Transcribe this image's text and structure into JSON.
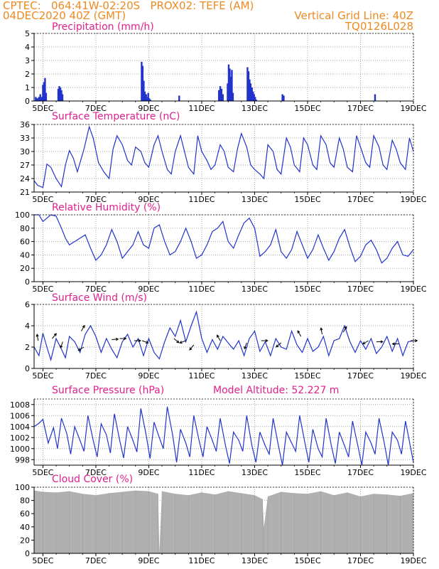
{
  "header": {
    "line1_left": "CPTEC:   064:41W-02:20S   PROX02: TEFE (AM)",
    "line2_left": "04DEC2020 40Z (GMT)",
    "line2_right": "Vertical Grid Line: 40Z",
    "line3_right": "TQ0126L028"
  },
  "colors": {
    "header": "#ee8a22",
    "title": "#e0208e",
    "line": "#2233cc",
    "bar": "#2233cc",
    "cloud": "#b0b0b0",
    "grid": "#888888"
  },
  "x_axis": {
    "start_day": 4,
    "start_hour": 16,
    "end_day": 19,
    "tick_labels": [
      "5DEC",
      "7DEC",
      "9DEC",
      "11DEC",
      "13DEC",
      "15DEC",
      "17DEC",
      "19DEC"
    ]
  },
  "chart_data": [
    {
      "id": "precip",
      "type": "bar",
      "title": "Precipitation (mm/h)",
      "ylim": [
        0,
        5
      ],
      "yticks": [
        0,
        1,
        2,
        3,
        4,
        5
      ],
      "x_days": [
        4.73,
        4.79,
        4.85,
        4.9,
        4.96,
        5.0,
        5.04,
        5.08,
        5.12,
        5.58,
        5.62,
        5.66,
        5.7,
        5.74,
        8.73,
        8.77,
        8.81,
        8.85,
        8.9,
        8.94,
        8.98,
        9.02,
        9.06,
        10.15,
        11.65,
        11.7,
        11.75,
        11.8,
        11.98,
        12.02,
        12.06,
        12.1,
        12.14,
        12.18,
        12.73,
        12.77,
        12.81,
        12.85,
        12.9,
        12.94,
        12.98,
        13.02,
        13.06,
        14.05,
        14.1,
        17.55
      ],
      "values": [
        0.3,
        0.2,
        0.3,
        0.5,
        0.3,
        1.2,
        1.4,
        1.7,
        0.6,
        0.9,
        1.1,
        1.0,
        0.8,
        0.5,
        2.9,
        2.6,
        1.5,
        0.7,
        0.5,
        0.3,
        0.6,
        0.2,
        0.1,
        0.4,
        0.8,
        1.1,
        0.9,
        0.5,
        1.3,
        2.7,
        2.4,
        1.8,
        2.3,
        0.6,
        2.5,
        2.2,
        1.6,
        1.3,
        1.0,
        0.7,
        0.5,
        0.3,
        0.1,
        0.5,
        0.4,
        0.5
      ]
    },
    {
      "id": "temp",
      "type": "line",
      "title": "Surface Temperature (nC)",
      "ylim": [
        21,
        36
      ],
      "yticks": [
        21,
        24,
        27,
        30,
        33,
        36
      ],
      "x_days": [
        4.67,
        4.8,
        5.0,
        5.15,
        5.3,
        5.5,
        5.7,
        5.85,
        6.0,
        6.15,
        6.3,
        6.55,
        6.75,
        6.9,
        7.1,
        7.3,
        7.5,
        7.65,
        7.8,
        8.0,
        8.2,
        8.35,
        8.5,
        8.7,
        8.85,
        9.0,
        9.2,
        9.35,
        9.5,
        9.7,
        9.85,
        10.0,
        10.2,
        10.35,
        10.5,
        10.7,
        10.85,
        11.0,
        11.2,
        11.35,
        11.5,
        11.7,
        11.85,
        12.0,
        12.2,
        12.35,
        12.5,
        12.7,
        12.85,
        13.0,
        13.2,
        13.35,
        13.5,
        13.7,
        13.85,
        14.0,
        14.2,
        14.35,
        14.5,
        14.7,
        14.85,
        15.0,
        15.2,
        15.35,
        15.5,
        15.7,
        15.85,
        16.0,
        16.2,
        16.35,
        16.5,
        16.7,
        16.85,
        17.0,
        17.2,
        17.35,
        17.5,
        17.7,
        17.85,
        18.0,
        18.2,
        18.35,
        18.5,
        18.7,
        18.85,
        19.0
      ],
      "values": [
        23.5,
        22.5,
        22.0,
        27.2,
        26.5,
        24.0,
        22.2,
        27.0,
        30.2,
        28.5,
        25.5,
        30.5,
        35.5,
        33.0,
        27.5,
        25.5,
        24.0,
        30.5,
        33.5,
        31.5,
        28.0,
        27.0,
        31.0,
        30.0,
        27.5,
        26.5,
        31.5,
        33.5,
        30.0,
        26.0,
        25.0,
        30.0,
        33.5,
        30.0,
        26.5,
        25.0,
        33.5,
        30.0,
        28.0,
        26.0,
        27.0,
        31.5,
        30.0,
        26.5,
        25.5,
        30.5,
        34.0,
        31.0,
        27.0,
        26.0,
        25.0,
        24.0,
        31.5,
        30.0,
        26.0,
        25.0,
        33.0,
        31.0,
        27.0,
        25.5,
        33.0,
        31.5,
        27.0,
        26.0,
        33.5,
        31.5,
        27.5,
        26.5,
        33.0,
        30.5,
        26.5,
        25.5,
        33.5,
        31.0,
        27.5,
        26.5,
        33.5,
        31.0,
        27.0,
        26.0,
        32.5,
        30.5,
        27.5,
        26.0,
        33.0,
        30.0
      ]
    },
    {
      "id": "rh",
      "type": "line",
      "title": "Relative Humidity (%)",
      "ylim": [
        0,
        100
      ],
      "yticks": [
        0,
        20,
        40,
        60,
        80,
        100
      ],
      "x_days": [
        4.67,
        4.85,
        5.0,
        5.15,
        5.3,
        5.5,
        5.7,
        5.85,
        6.0,
        6.2,
        6.4,
        6.6,
        6.8,
        7.0,
        7.2,
        7.4,
        7.6,
        7.8,
        8.0,
        8.2,
        8.4,
        8.6,
        8.8,
        9.0,
        9.2,
        9.4,
        9.6,
        9.8,
        10.0,
        10.2,
        10.4,
        10.6,
        10.8,
        11.0,
        11.2,
        11.4,
        11.6,
        11.8,
        12.0,
        12.2,
        12.4,
        12.6,
        12.8,
        13.0,
        13.2,
        13.4,
        13.6,
        13.8,
        14.0,
        14.2,
        14.4,
        14.6,
        14.8,
        15.0,
        15.2,
        15.4,
        15.6,
        15.8,
        16.0,
        16.2,
        16.4,
        16.6,
        16.8,
        17.0,
        17.2,
        17.4,
        17.6,
        17.8,
        18.0,
        18.2,
        18.4,
        18.6,
        18.8,
        19.0
      ],
      "values": [
        100,
        100,
        90,
        95,
        100,
        98,
        80,
        65,
        55,
        60,
        65,
        70,
        50,
        32,
        40,
        55,
        78,
        60,
        35,
        45,
        55,
        75,
        55,
        50,
        80,
        85,
        60,
        40,
        45,
        60,
        80,
        60,
        35,
        40,
        55,
        75,
        80,
        90,
        60,
        50,
        70,
        88,
        95,
        80,
        38,
        45,
        55,
        78,
        45,
        35,
        48,
        75,
        55,
        35,
        48,
        70,
        50,
        32,
        45,
        65,
        78,
        52,
        30,
        38,
        55,
        62,
        48,
        28,
        35,
        50,
        60,
        40,
        38,
        48
      ]
    },
    {
      "id": "wind",
      "type": "line",
      "title": "Surface Wind (m/s)",
      "ylim": [
        0,
        6
      ],
      "yticks": [
        0,
        2,
        4,
        6
      ],
      "x_days": [
        4.67,
        4.85,
        5.0,
        5.15,
        5.3,
        5.5,
        5.7,
        5.85,
        6.0,
        6.2,
        6.4,
        6.6,
        6.8,
        7.0,
        7.2,
        7.4,
        7.6,
        7.8,
        8.0,
        8.2,
        8.4,
        8.6,
        8.8,
        9.0,
        9.2,
        9.4,
        9.6,
        9.8,
        10.0,
        10.2,
        10.4,
        10.6,
        10.8,
        11.0,
        11.2,
        11.4,
        11.6,
        11.8,
        12.0,
        12.2,
        12.4,
        12.6,
        12.8,
        13.0,
        13.2,
        13.4,
        13.6,
        13.8,
        14.0,
        14.2,
        14.4,
        14.6,
        14.8,
        15.0,
        15.2,
        15.4,
        15.6,
        15.8,
        16.0,
        16.2,
        16.4,
        16.6,
        16.8,
        17.0,
        17.2,
        17.4,
        17.6,
        17.8,
        18.0,
        18.2,
        18.4,
        18.6,
        18.8,
        19.0
      ],
      "values": [
        2.0,
        1.2,
        3.3,
        2.0,
        0.8,
        2.8,
        1.8,
        1.0,
        3.0,
        2.5,
        1.5,
        3.2,
        4.0,
        3.0,
        1.5,
        2.8,
        1.8,
        1.0,
        2.5,
        3.2,
        2.0,
        2.8,
        1.2,
        2.8,
        1.5,
        0.9,
        2.5,
        3.8,
        3.0,
        4.5,
        2.5,
        4.0,
        5.3,
        2.8,
        1.5,
        2.7,
        1.8,
        3.0,
        2.4,
        1.8,
        2.6,
        1.2,
        2.8,
        3.5,
        1.6,
        2.5,
        1.2,
        2.8,
        2.0,
        1.8,
        3.5,
        2.2,
        1.5,
        2.8,
        1.6,
        2.0,
        3.0,
        1.2,
        2.6,
        2.8,
        4.0,
        2.5,
        1.5,
        2.6,
        1.8,
        2.8,
        1.4,
        2.0,
        3.0,
        1.6,
        2.8,
        1.2,
        2.5,
        2.6
      ],
      "arrows": [
        {
          "day": 4.82,
          "speed": 2.6,
          "dir": 100
        },
        {
          "day": 5.35,
          "speed": 2.8,
          "dir": 50
        },
        {
          "day": 5.75,
          "speed": 2.5,
          "dir": 250
        },
        {
          "day": 6.45,
          "speed": 3.5,
          "dir": 60
        },
        {
          "day": 6.55,
          "speed": 2.0,
          "dir": 210
        },
        {
          "day": 7.6,
          "speed": 2.7,
          "dir": 5
        },
        {
          "day": 7.9,
          "speed": 2.8,
          "dir": 0
        },
        {
          "day": 8.45,
          "speed": 2.6,
          "dir": 0
        },
        {
          "day": 8.75,
          "speed": 2.6,
          "dir": -20
        },
        {
          "day": 9.95,
          "speed": 2.8,
          "dir": -40
        },
        {
          "day": 10.4,
          "speed": 2.6,
          "dir": 200
        },
        {
          "day": 10.7,
          "speed": 2.2,
          "dir": 230
        },
        {
          "day": 11.7,
          "speed": 2.6,
          "dir": 120
        },
        {
          "day": 12.7,
          "speed": 2.4,
          "dir": 250
        },
        {
          "day": 13.25,
          "speed": 2.6,
          "dir": 0
        },
        {
          "day": 14.0,
          "speed": 2.4,
          "dir": 220
        },
        {
          "day": 14.75,
          "speed": 3.0,
          "dir": 120
        },
        {
          "day": 15.55,
          "speed": 3.2,
          "dir": 100
        },
        {
          "day": 16.35,
          "speed": 3.4,
          "dir": 60
        },
        {
          "day": 17.3,
          "speed": 2.6,
          "dir": 210
        },
        {
          "day": 17.6,
          "speed": 2.5,
          "dir": 0
        },
        {
          "day": 18.45,
          "speed": 2.3,
          "dir": 180
        },
        {
          "day": 18.9,
          "speed": 2.6,
          "dir": 0
        }
      ]
    },
    {
      "id": "pres",
      "type": "line",
      "title": "Surface Pressure (hPa)",
      "subtitle": "Model Altitude: 52.227  m",
      "ylim": [
        997,
        1009
      ],
      "yticks": [
        998,
        1000,
        1002,
        1004,
        1006,
        1008
      ],
      "x_days": [
        4.67,
        4.85,
        5.0,
        5.2,
        5.4,
        5.55,
        5.7,
        5.9,
        6.05,
        6.2,
        6.4,
        6.55,
        6.7,
        6.9,
        7.05,
        7.2,
        7.4,
        7.55,
        7.7,
        7.9,
        8.05,
        8.2,
        8.4,
        8.55,
        8.7,
        8.9,
        9.05,
        9.2,
        9.4,
        9.55,
        9.7,
        9.9,
        10.05,
        10.2,
        10.4,
        10.55,
        10.7,
        10.9,
        11.05,
        11.2,
        11.4,
        11.55,
        11.7,
        11.9,
        12.05,
        12.2,
        12.4,
        12.55,
        12.7,
        12.9,
        13.05,
        13.2,
        13.4,
        13.55,
        13.7,
        13.9,
        14.05,
        14.2,
        14.4,
        14.55,
        14.7,
        14.9,
        15.05,
        15.2,
        15.4,
        15.55,
        15.7,
        15.9,
        16.05,
        16.2,
        16.4,
        16.55,
        16.7,
        16.9,
        17.05,
        17.2,
        17.4,
        17.55,
        17.7,
        17.9,
        18.05,
        18.2,
        18.4,
        18.55,
        18.7,
        18.9,
        19.0
      ],
      "values": [
        1004.0,
        1004.6,
        1005.3,
        1001.0,
        1003.8,
        1000.0,
        1005.5,
        1002.8,
        999.0,
        1004.0,
        1001.5,
        999.5,
        1006.0,
        1001.5,
        998.5,
        1004.5,
        1002.5,
        999.2,
        1006.3,
        1001.5,
        998.3,
        1004.0,
        1001.5,
        999.4,
        1007.3,
        1002.5,
        998.2,
        1004.8,
        1002.0,
        1000.0,
        1007.6,
        1002.5,
        997.5,
        1003.5,
        1001.0,
        998.5,
        1006.0,
        1001.5,
        998.5,
        1004.0,
        1001.5,
        999.5,
        1005.5,
        1000.5,
        997.3,
        1003.0,
        1001.5,
        999.5,
        1006.0,
        1000.5,
        997.5,
        1003.0,
        1000.5,
        999.0,
        1005.5,
        1000.5,
        997.0,
        1003.0,
        1001.0,
        999.5,
        1006.0,
        1001.0,
        997.5,
        1003.5,
        1000.0,
        998.5,
        1005.5,
        1000.5,
        997.3,
        1003.0,
        1000.5,
        998.5,
        1005.0,
        1000.5,
        997.0,
        1003.0,
        1001.0,
        999.0,
        1005.5,
        1001.0,
        997.0,
        1003.0,
        1001.5,
        999.0,
        1005.0,
        1000.0,
        997.5
      ]
    },
    {
      "id": "cloud",
      "type": "area",
      "title": "Cloud Cover (%)",
      "ylim": [
        0,
        100
      ],
      "yticks": [
        0,
        20,
        40,
        60,
        80,
        100
      ],
      "x_days": [
        4.67,
        5.0,
        5.5,
        6.0,
        6.5,
        7.0,
        7.5,
        8.0,
        8.5,
        9.0,
        9.35,
        9.4,
        9.5,
        10.0,
        10.5,
        11.0,
        11.5,
        12.0,
        12.5,
        13.0,
        13.3,
        13.35,
        13.5,
        14.0,
        14.5,
        15.0,
        15.5,
        16.0,
        16.5,
        17.0,
        17.5,
        18.0,
        18.5,
        19.0
      ],
      "values": [
        95,
        93,
        92,
        94,
        90,
        88,
        91,
        93,
        95,
        94,
        90,
        2,
        94,
        90,
        88,
        92,
        89,
        94,
        91,
        88,
        82,
        40,
        86,
        93,
        91,
        90,
        94,
        88,
        92,
        86,
        90,
        89,
        87,
        91
      ]
    }
  ]
}
